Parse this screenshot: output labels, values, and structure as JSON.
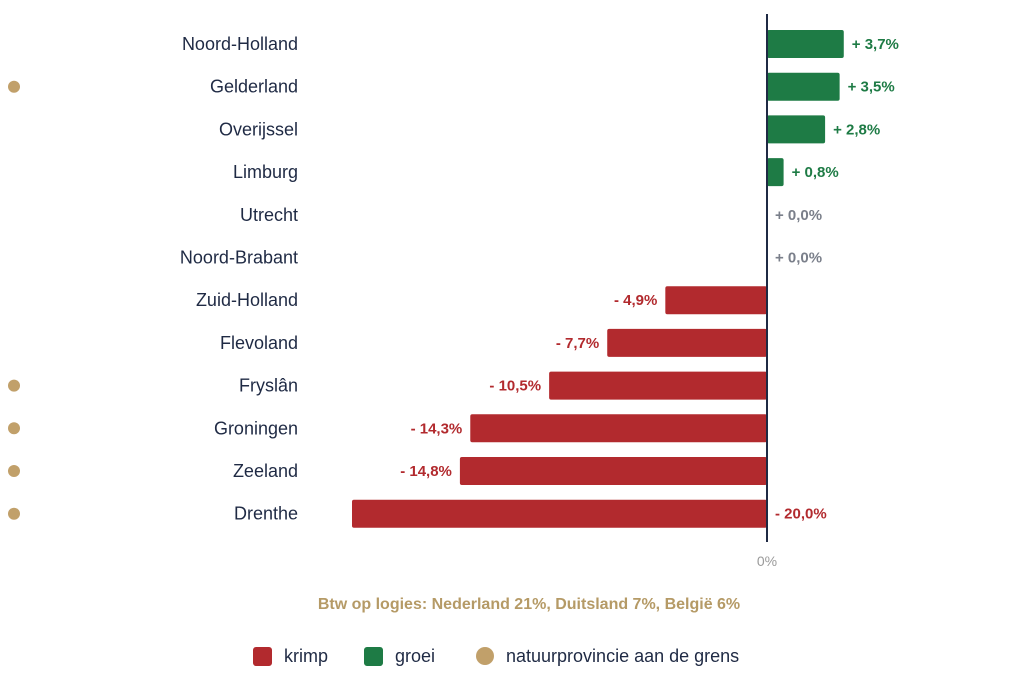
{
  "chart_data": {
    "type": "bar",
    "orientation": "horizontal",
    "categories": [
      "Noord-Holland",
      "Gelderland",
      "Overijssel",
      "Limburg",
      "Utrecht",
      "Noord-Brabant",
      "Zuid-Holland",
      "Flevoland",
      "Fryslân",
      "Groningen",
      "Zeeland",
      "Drenthe"
    ],
    "values": [
      3.7,
      3.5,
      2.8,
      0.8,
      0.0,
      0.0,
      -4.9,
      -7.7,
      -10.5,
      -14.3,
      -14.8,
      -20.0
    ],
    "value_labels": [
      "+ 3,7%",
      "+ 3,5%",
      "+ 2,8%",
      "+ 0,8%",
      "+ 0,0%",
      "+ 0,0%",
      "- 4,9%",
      "- 7,7%",
      "- 10,5%",
      "- 14,3%",
      "- 14,8%",
      "- 20,0%"
    ],
    "nature_province": [
      false,
      true,
      false,
      false,
      false,
      false,
      false,
      false,
      true,
      true,
      true,
      true
    ],
    "x_tick_label": "0%",
    "xlim": [
      -20,
      3.7
    ],
    "note": "Btw op logies: Nederland 21%, Duitsland 7%, België 6%",
    "legend": {
      "placement": "bottom",
      "items": [
        {
          "label": "krimp",
          "shape": "square",
          "color": "#b22a2e"
        },
        {
          "label": "groei",
          "shape": "square",
          "color": "#1e7b45"
        },
        {
          "label": "natuurprovincie aan de grens",
          "shape": "circle",
          "color": "#c1a06a"
        }
      ]
    }
  },
  "colors": {
    "negative": "#b22a2e",
    "positive": "#1e7b45",
    "zero_label": "#7a7f8a",
    "dot": "#c1a06a",
    "axis": "#1f2a44",
    "note": "#b59a66"
  }
}
